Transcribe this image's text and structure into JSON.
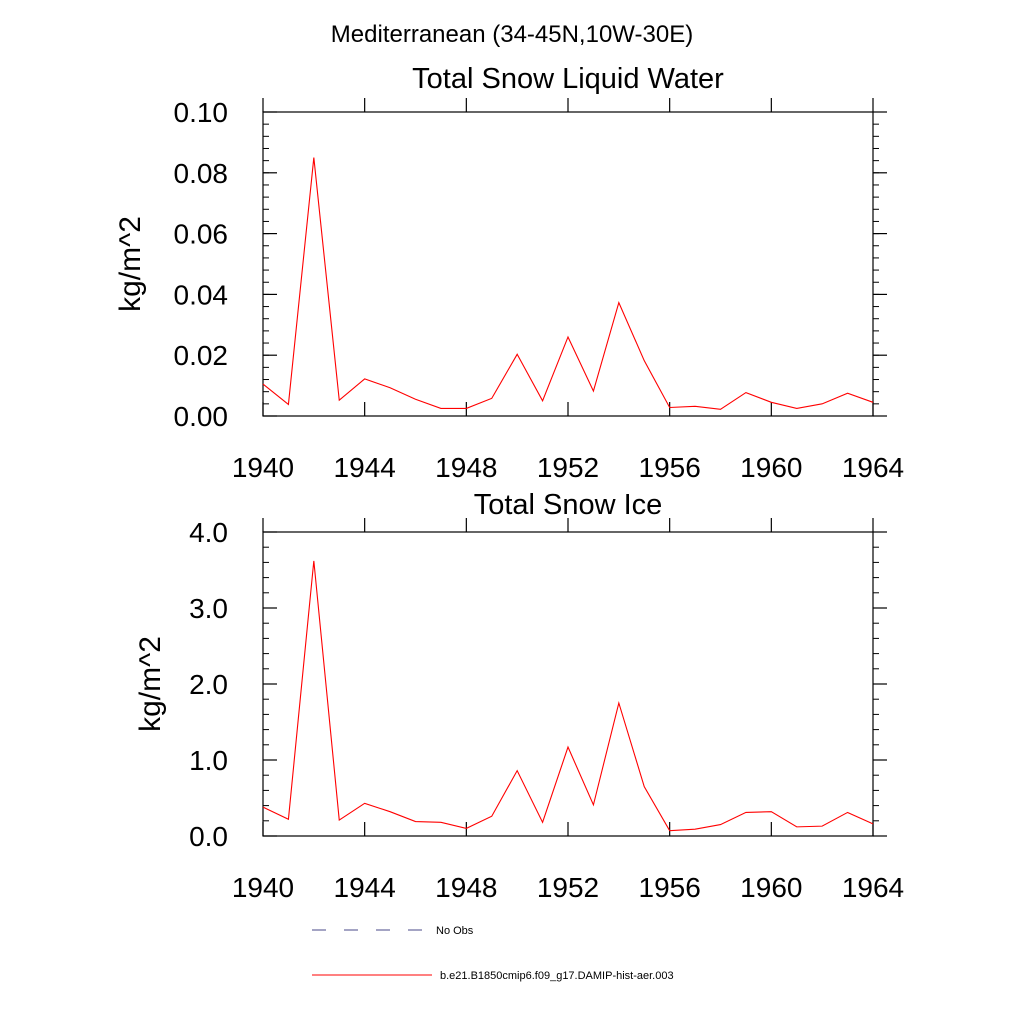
{
  "page": {
    "title": "Mediterranean (34-45N,10W-30E)"
  },
  "colors": {
    "model_line": "#ff0000",
    "obs_line": "#4a4a8a",
    "axis": "#000000"
  },
  "chart_data": [
    {
      "type": "line",
      "title": "Total Snow Liquid Water",
      "xlabel": "",
      "ylabel": "kg/m^2",
      "xlim": [
        1940,
        1964
      ],
      "ylim": [
        0,
        0.1
      ],
      "xticks": [
        1940,
        1944,
        1948,
        1952,
        1956,
        1960,
        1964
      ],
      "xtick_labels": [
        "1940",
        "1944",
        "1948",
        "1952",
        "1956",
        "1960",
        "1964"
      ],
      "yticks": [
        0,
        0.02,
        0.04,
        0.06,
        0.08,
        0.1
      ],
      "ytick_labels": [
        "0.00",
        "0.02",
        "0.04",
        "0.06",
        "0.08",
        "0.10"
      ],
      "y_minor_step": 0.004,
      "series": [
        {
          "name": "b.e21.B1850cmip6.f09_g17.DAMIP-hist-aer.003",
          "x": [
            1940,
            1941,
            1942,
            1943,
            1944,
            1945,
            1946,
            1947,
            1948,
            1949,
            1950,
            1951,
            1952,
            1953,
            1954,
            1955,
            1956,
            1957,
            1958,
            1959,
            1960,
            1961,
            1962,
            1963,
            1964
          ],
          "values": [
            0.0105,
            0.0038,
            0.085,
            0.0052,
            0.0122,
            0.0093,
            0.0055,
            0.0025,
            0.0025,
            0.0058,
            0.0203,
            0.005,
            0.026,
            0.0082,
            0.0373,
            0.0182,
            0.0028,
            0.0032,
            0.0022,
            0.0077,
            0.0045,
            0.0025,
            0.004,
            0.0075,
            0.0045
          ]
        }
      ]
    },
    {
      "type": "line",
      "title": "Total Snow Ice",
      "xlabel": "",
      "ylabel": "kg/m^2",
      "xlim": [
        1940,
        1964
      ],
      "ylim": [
        0,
        4
      ],
      "xticks": [
        1940,
        1944,
        1948,
        1952,
        1956,
        1960,
        1964
      ],
      "xtick_labels": [
        "1940",
        "1944",
        "1948",
        "1952",
        "1956",
        "1960",
        "1964"
      ],
      "yticks": [
        0,
        1,
        2,
        3,
        4
      ],
      "ytick_labels": [
        "0.0",
        "1.0",
        "2.0",
        "3.0",
        "4.0"
      ],
      "y_minor_step": 0.2,
      "series": [
        {
          "name": "b.e21.B1850cmip6.f09_g17.DAMIP-hist-aer.003",
          "x": [
            1940,
            1941,
            1942,
            1943,
            1944,
            1945,
            1946,
            1947,
            1948,
            1949,
            1950,
            1951,
            1952,
            1953,
            1954,
            1955,
            1956,
            1957,
            1958,
            1959,
            1960,
            1961,
            1962,
            1963,
            1964
          ],
          "values": [
            0.38,
            0.22,
            3.62,
            0.21,
            0.43,
            0.32,
            0.19,
            0.18,
            0.1,
            0.26,
            0.86,
            0.18,
            1.17,
            0.41,
            1.75,
            0.65,
            0.07,
            0.09,
            0.15,
            0.31,
            0.32,
            0.12,
            0.13,
            0.31,
            0.16
          ]
        }
      ]
    }
  ],
  "legend": [
    {
      "label": "No Obs",
      "style": "dashed"
    },
    {
      "label": "b.e21.B1850cmip6.f09_g17.DAMIP-hist-aer.003",
      "style": "solid"
    }
  ]
}
